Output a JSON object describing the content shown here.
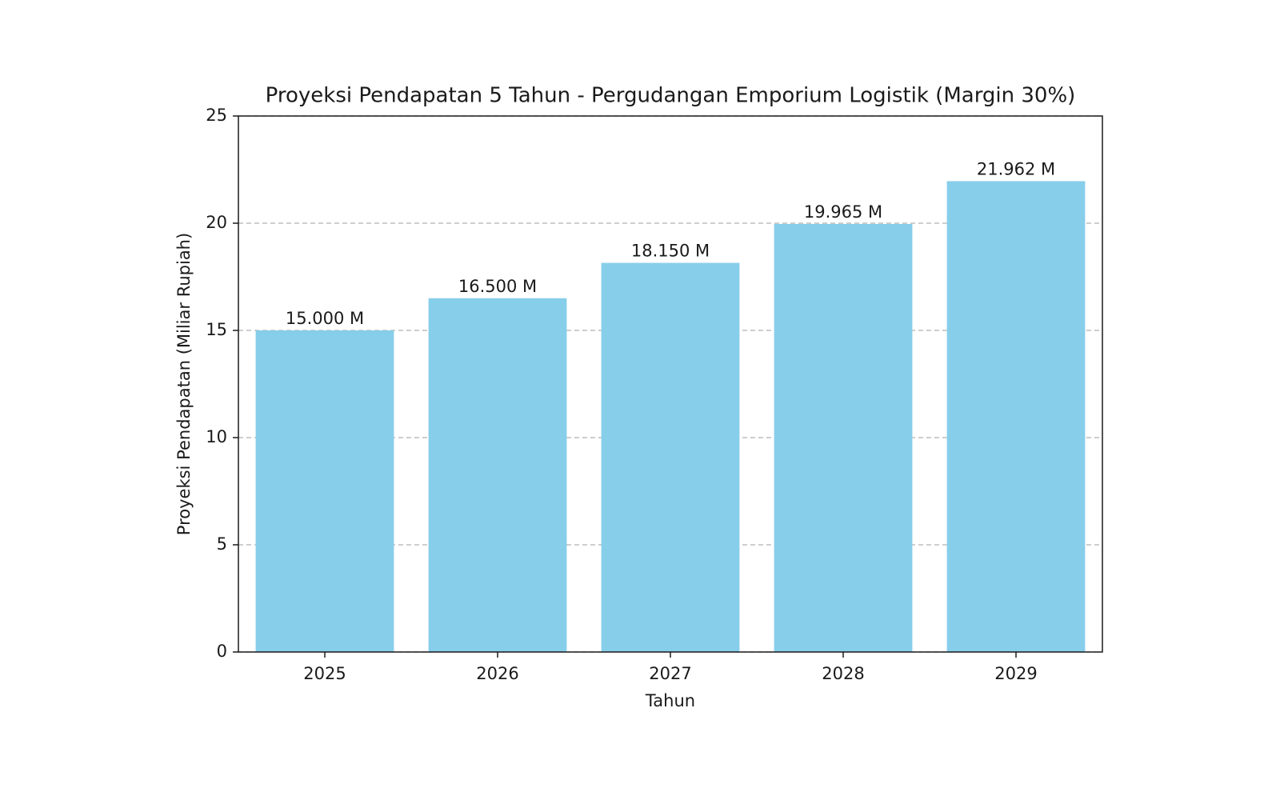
{
  "chart_data": {
    "type": "bar",
    "title": "Proyeksi Pendapatan 5 Tahun - Pergudangan Emporium Logistik (Margin 30%)",
    "x_label": "Tahun",
    "y_label": "Proyeksi Pendapatan (Miliar Rupiah)",
    "categories": [
      "2025",
      "2026",
      "2027",
      "2028",
      "2029"
    ],
    "values": [
      15,
      16.5,
      18.15,
      19.965,
      21.962
    ],
    "value_labels": [
      "15.000 M",
      "16.500 M",
      "18.150 M",
      "19.965 M",
      "21.962 M"
    ],
    "color": "#87ceeb",
    "ylim": [
      0,
      25
    ],
    "yticks": [
      0,
      5,
      10,
      15,
      20,
      25
    ],
    "grid": true
  }
}
